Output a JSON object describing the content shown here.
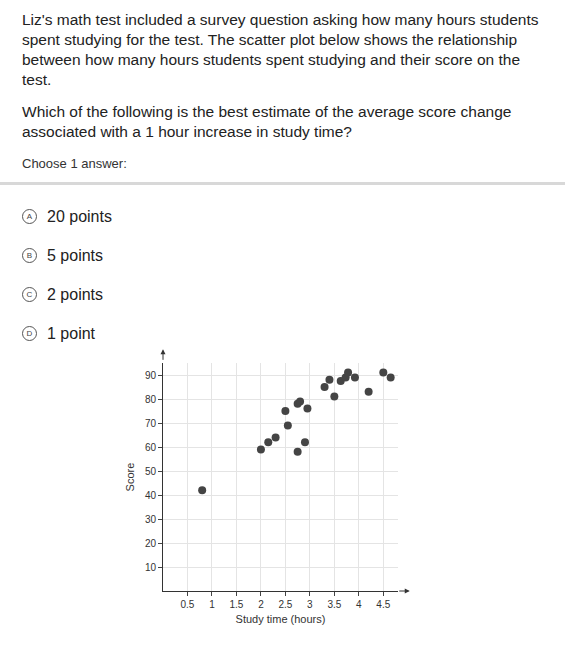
{
  "document": {
    "question": [
      "Liz's math test included a survey question asking how many hours students spent studying for the test. The scatter plot below shows the relationship between how many hours students spent studying and their score on the test.",
      "Which of the following is the best estimate of the average score change associated with a 1 hour increase in study time?"
    ],
    "prompt": "Choose 1 answer:",
    "options": [
      {
        "letter": "A",
        "text": "20 points"
      },
      {
        "letter": "B",
        "text": "5 points"
      },
      {
        "letter": "C",
        "text": "2 points"
      },
      {
        "letter": "D",
        "text": "1 point"
      }
    ]
  },
  "chart_data": {
    "type": "scatter",
    "x_label": "Study time (hours)",
    "y_label": "Score",
    "x": [
      0.8,
      2.0,
      2.15,
      2.3,
      2.55,
      2.75,
      2.9,
      2.5,
      2.75,
      2.8,
      2.95,
      3.4,
      3.3,
      3.5,
      3.63,
      3.73,
      3.78,
      3.92,
      4.2,
      4.5,
      4.65
    ],
    "values": [
      42,
      59,
      62,
      64,
      69,
      58,
      62,
      75,
      78,
      79,
      76,
      88,
      85,
      81,
      87.5,
      89,
      91,
      89,
      83,
      91,
      89
    ],
    "color": "#444444",
    "xlim": [
      0,
      4.8
    ],
    "ylim": [
      0,
      95
    ],
    "xticks": [
      0.5,
      1,
      1.5,
      2,
      2.5,
      3,
      3.5,
      4,
      4.5
    ],
    "yticks": [
      10,
      20,
      30,
      40,
      50,
      60,
      70,
      80,
      90
    ],
    "grid": true
  }
}
